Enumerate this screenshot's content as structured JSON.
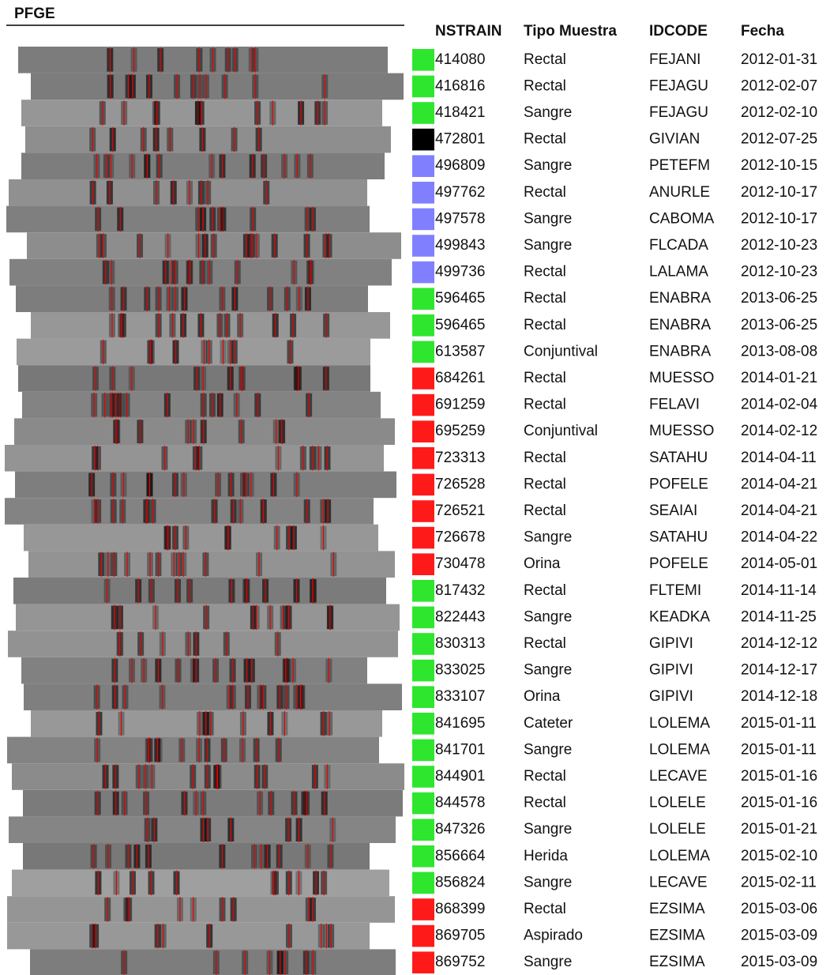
{
  "header": {
    "title": "PFGE"
  },
  "table": {
    "columns": [
      "NSTRAIN",
      "Tipo Muestra",
      "IDCODE",
      "Fecha"
    ],
    "rows": [
      {
        "nstrain": "414080",
        "tipo": "Rectal",
        "idcode": "FEJANI",
        "fecha": "2012-01-31",
        "color": "#2ee62e"
      },
      {
        "nstrain": "416816",
        "tipo": "Rectal",
        "idcode": "FEJAGU",
        "fecha": "2012-02-07",
        "color": "#2ee62e"
      },
      {
        "nstrain": "418421",
        "tipo": "Sangre",
        "idcode": "FEJAGU",
        "fecha": "2012-02-10",
        "color": "#2ee62e"
      },
      {
        "nstrain": "472801",
        "tipo": "Rectal",
        "idcode": "GIVIAN",
        "fecha": "2012-07-25",
        "color": "#000000"
      },
      {
        "nstrain": "496809",
        "tipo": "Sangre",
        "idcode": "PETEFM",
        "fecha": "2012-10-15",
        "color": "#8080ff"
      },
      {
        "nstrain": "497762",
        "tipo": "Rectal",
        "idcode": "ANURLE",
        "fecha": "2012-10-17",
        "color": "#8080ff"
      },
      {
        "nstrain": "497578",
        "tipo": "Sangre",
        "idcode": "CABOMA",
        "fecha": "2012-10-17",
        "color": "#8080ff"
      },
      {
        "nstrain": "499843",
        "tipo": "Sangre",
        "idcode": "FLCADA",
        "fecha": "2012-10-23",
        "color": "#8080ff"
      },
      {
        "nstrain": "499736",
        "tipo": "Rectal",
        "idcode": "LALAMA",
        "fecha": "2012-10-23",
        "color": "#8080ff"
      },
      {
        "nstrain": "596465",
        "tipo": "Rectal",
        "idcode": "ENABRA",
        "fecha": "2013-06-25",
        "color": "#2ee62e"
      },
      {
        "nstrain": "596465",
        "tipo": "Rectal",
        "idcode": "ENABRA",
        "fecha": "2013-06-25",
        "color": "#2ee62e"
      },
      {
        "nstrain": "613587",
        "tipo": "Conjuntival",
        "idcode": "ENABRA",
        "fecha": "2013-08-08",
        "color": "#2ee62e"
      },
      {
        "nstrain": "684261",
        "tipo": "Rectal",
        "idcode": "MUESSO",
        "fecha": "2014-01-21",
        "color": "#ff1a1a"
      },
      {
        "nstrain": "691259",
        "tipo": "Rectal",
        "idcode": "FELAVI",
        "fecha": "2014-02-04",
        "color": "#ff1a1a"
      },
      {
        "nstrain": "695259",
        "tipo": "Conjuntival",
        "idcode": "MUESSO",
        "fecha": "2014-02-12",
        "color": "#ff1a1a"
      },
      {
        "nstrain": "723313",
        "tipo": "Rectal",
        "idcode": "SATAHU",
        "fecha": "2014-04-11",
        "color": "#ff1a1a"
      },
      {
        "nstrain": "726528",
        "tipo": "Rectal",
        "idcode": "POFELE",
        "fecha": "2014-04-21",
        "color": "#ff1a1a"
      },
      {
        "nstrain": "726521",
        "tipo": "Rectal",
        "idcode": "SEAIAI",
        "fecha": "2014-04-21",
        "color": "#ff1a1a"
      },
      {
        "nstrain": "726678",
        "tipo": "Sangre",
        "idcode": "SATAHU",
        "fecha": "2014-04-22",
        "color": "#ff1a1a"
      },
      {
        "nstrain": "730478",
        "tipo": "Orina",
        "idcode": "POFELE",
        "fecha": "2014-05-01",
        "color": "#ff1a1a"
      },
      {
        "nstrain": "817432",
        "tipo": "Rectal",
        "idcode": "FLTEMI",
        "fecha": "2014-11-14",
        "color": "#2ee62e"
      },
      {
        "nstrain": "822443",
        "tipo": "Sangre",
        "idcode": "KEADKA",
        "fecha": "2014-11-25",
        "color": "#2ee62e"
      },
      {
        "nstrain": "830313",
        "tipo": "Rectal",
        "idcode": "GIPIVI",
        "fecha": "2014-12-12",
        "color": "#2ee62e"
      },
      {
        "nstrain": "833025",
        "tipo": "Sangre",
        "idcode": "GIPIVI",
        "fecha": "2014-12-17",
        "color": "#2ee62e"
      },
      {
        "nstrain": "833107",
        "tipo": "Orina",
        "idcode": "GIPIVI",
        "fecha": "2014-12-18",
        "color": "#2ee62e"
      },
      {
        "nstrain": "841695",
        "tipo": "Cateter",
        "idcode": "LOLEMA",
        "fecha": "2015-01-11",
        "color": "#2ee62e"
      },
      {
        "nstrain": "841701",
        "tipo": "Sangre",
        "idcode": "LOLEMA",
        "fecha": "2015-01-11",
        "color": "#2ee62e"
      },
      {
        "nstrain": "844901",
        "tipo": "Rectal",
        "idcode": "LECAVE",
        "fecha": "2015-01-16",
        "color": "#2ee62e"
      },
      {
        "nstrain": "844578",
        "tipo": "Rectal",
        "idcode": "LOLELE",
        "fecha": "2015-01-16",
        "color": "#2ee62e"
      },
      {
        "nstrain": "847326",
        "tipo": "Sangre",
        "idcode": "LOLELE",
        "fecha": "2015-01-21",
        "color": "#2ee62e"
      },
      {
        "nstrain": "856664",
        "tipo": "Herida",
        "idcode": "LOLEMA",
        "fecha": "2015-02-10",
        "color": "#2ee62e"
      },
      {
        "nstrain": "856824",
        "tipo": "Sangre",
        "idcode": "LECAVE",
        "fecha": "2015-02-11",
        "color": "#2ee62e"
      },
      {
        "nstrain": "868399",
        "tipo": "Rectal",
        "idcode": "EZSIMA",
        "fecha": "2015-03-06",
        "color": "#ff1a1a"
      },
      {
        "nstrain": "869705",
        "tipo": "Aspirado",
        "idcode": "EZSIMA",
        "fecha": "2015-03-09",
        "color": "#ff1a1a"
      },
      {
        "nstrain": "869752",
        "tipo": "Sangre",
        "idcode": "EZSIMA",
        "fecha": "2015-03-09",
        "color": "#ff1a1a"
      }
    ]
  }
}
